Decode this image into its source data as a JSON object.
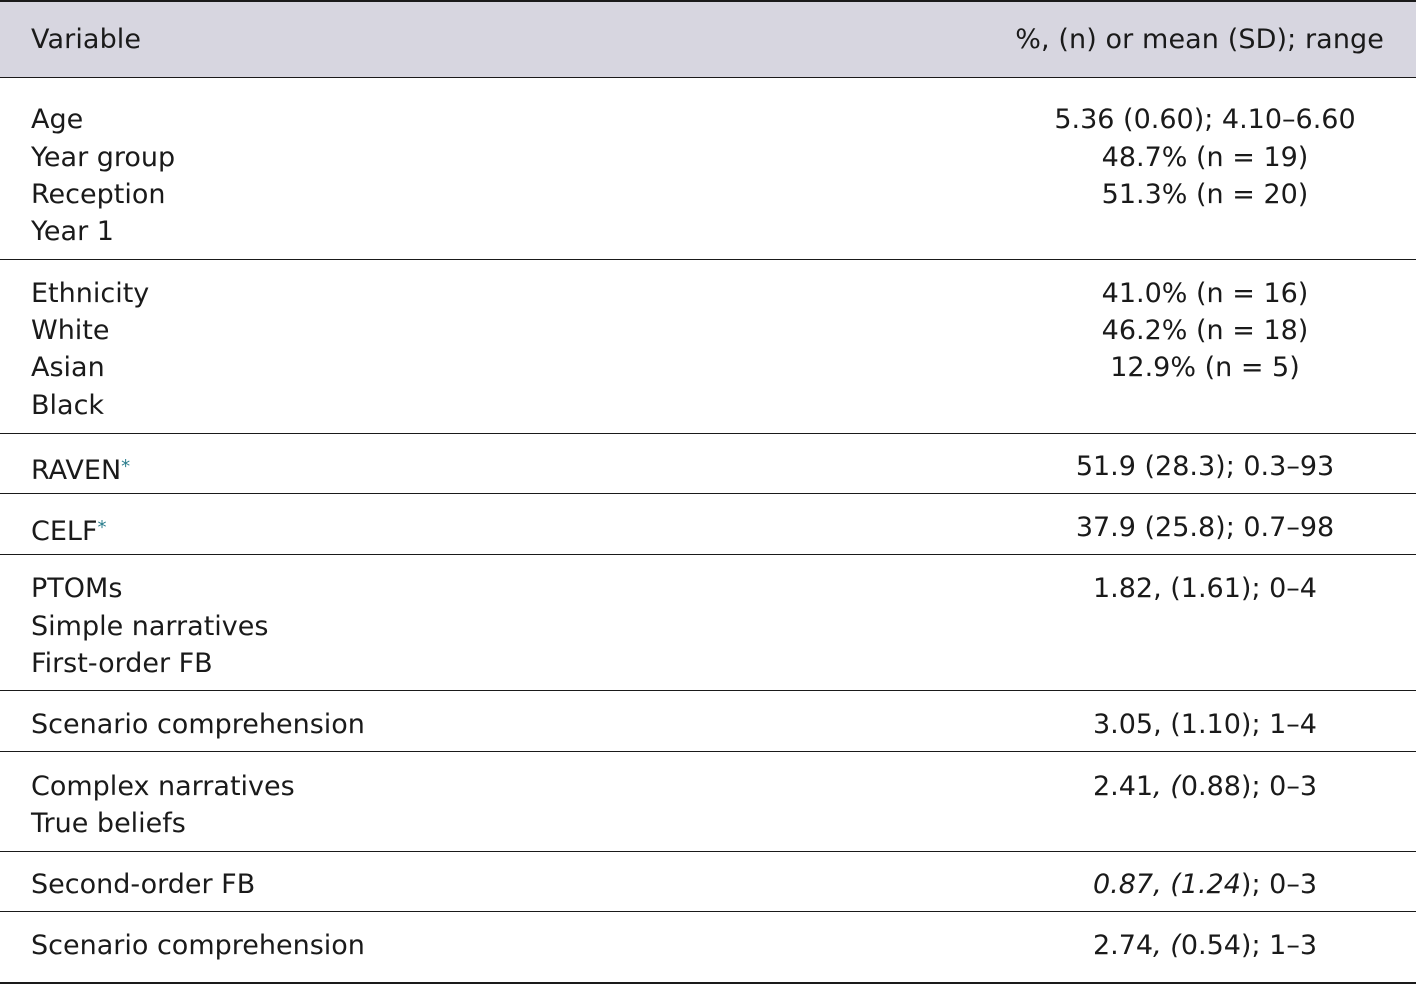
{
  "header": {
    "col1": "Variable",
    "col2": "%, (n) or mean (SD); range"
  },
  "rows": {
    "age_label": "Age",
    "year_group_label": "Year group",
    "reception_label": "Reception",
    "year1_label": "Year 1",
    "age_value": "5.36 (0.60); 4.10–6.60",
    "year_group_value": "48.7% (n = 19)",
    "reception_value": "51.3% (n = 20)",
    "ethnicity_label": "Ethnicity",
    "white_label": "White",
    "asian_label": "Asian",
    "black_label": "Black",
    "ethnicity_value": "41.0% (n = 16)",
    "white_value": "46.2% (n = 18)",
    "asian_value": "12.9% (n = 5)",
    "raven_label": "RAVEN",
    "raven_asterisk": "*",
    "raven_value": "51.9 (28.3); 0.3–93",
    "celf_label": "CELF",
    "celf_asterisk": "*",
    "celf_value": "37.9 (25.8); 0.7–98",
    "ptoms_label": "PTOMs",
    "simple_narratives_label": "Simple narratives",
    "first_order_fb_label": "First-order FB",
    "ptoms_value": "1.82, (1.61); 0–4",
    "scenario_comp1_label": "Scenario comprehension",
    "scenario_comp1_value": "3.05, (1.10); 1–4",
    "complex_narratives_label": "Complex narratives",
    "true_beliefs_label": "True beliefs",
    "complex_narratives_value_a": "2.41",
    "complex_narratives_value_b": ", (",
    "complex_narratives_value_c": "0.88); 0–3",
    "second_order_fb_label": "Second-order FB",
    "second_order_fb_value_italic": "0.87, (1.24",
    "second_order_fb_value_rest": "); 0–3",
    "scenario_comp2_label": "Scenario comprehension",
    "scenario_comp2_value_a": "2.74",
    "scenario_comp2_value_b": ", (",
    "scenario_comp2_value_c": "0.54); 1–3"
  }
}
